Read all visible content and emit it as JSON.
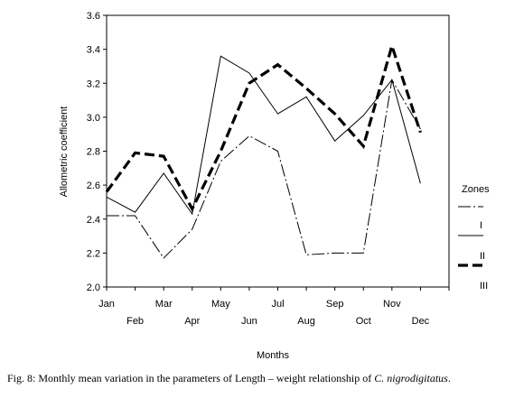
{
  "chart_data": {
    "type": "line",
    "categories": [
      "Jan",
      "Feb",
      "Mar",
      "Apr",
      "May",
      "Jun",
      "Jul",
      "Aug",
      "Sep",
      "Oct",
      "Nov",
      "Dec"
    ],
    "xlabel": "Months",
    "ylabel": "Allometric coefficient",
    "ylim": [
      2.0,
      3.6
    ],
    "yticks": [
      "2.0",
      "2.2",
      "2.4",
      "2.6",
      "2.8",
      "3.0",
      "3.2",
      "3.4",
      "3.6"
    ],
    "grid": false,
    "legend": {
      "title": "Zones",
      "position": "right",
      "entries": [
        "I",
        "II",
        "III"
      ]
    },
    "series": [
      {
        "name": "I",
        "style": "dash-dot",
        "values": [
          2.42,
          2.42,
          2.17,
          2.34,
          2.74,
          2.89,
          2.8,
          2.19,
          2.2,
          2.2,
          3.22,
          2.93
        ]
      },
      {
        "name": "II",
        "style": "solid",
        "values": [
          2.53,
          2.44,
          2.67,
          2.43,
          3.36,
          3.26,
          3.02,
          3.12,
          2.86,
          3.01,
          3.22,
          2.61
        ]
      },
      {
        "name": "III",
        "style": "bold-dash",
        "values": [
          2.56,
          2.79,
          2.77,
          2.46,
          2.8,
          3.2,
          3.31,
          3.17,
          3.02,
          2.83,
          3.42,
          2.91
        ]
      }
    ]
  },
  "caption": {
    "prefix": "Fig. 8: Monthly mean variation in the parameters of Length – weight relationship of ",
    "species": "C. nigrodigitatus",
    "suffix": "."
  }
}
